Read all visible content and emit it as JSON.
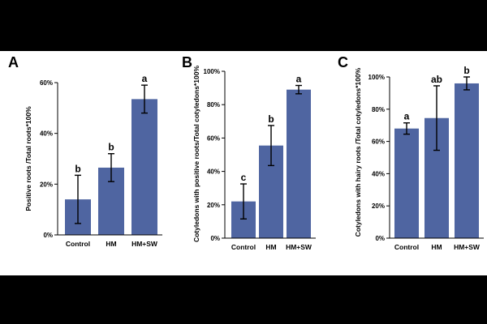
{
  "colors": {
    "bar": "#4F65A1",
    "axis": "#000000",
    "band": "#000000"
  },
  "chart_data": [
    {
      "type": "bar",
      "panel": "A",
      "ylabel": "Positive roots /Total roots*100%",
      "ylim": [
        0,
        60
      ],
      "yticks": [
        0,
        20,
        40,
        60
      ],
      "ytick_labels": [
        "0%",
        "20%",
        "40%",
        "60%"
      ],
      "categories": [
        "Control",
        "HM",
        "HM+SW"
      ],
      "values": [
        14,
        26.5,
        53.5
      ],
      "errors": [
        9.5,
        5.5,
        5.5
      ],
      "significance": [
        "b",
        "b",
        "a"
      ],
      "grid": false,
      "legend": "none"
    },
    {
      "type": "bar",
      "panel": "B",
      "ylabel": "Cotyledons with positive roots/Total cotyledons*100%",
      "ylim": [
        0,
        100
      ],
      "yticks": [
        0,
        20,
        40,
        60,
        80,
        100
      ],
      "ytick_labels": [
        "0%",
        "20%",
        "40%",
        "60%",
        "80%",
        "100%"
      ],
      "categories": [
        "Control",
        "HM",
        "HM+SW"
      ],
      "values": [
        22,
        55.5,
        89
      ],
      "errors": [
        10.5,
        12,
        2.5
      ],
      "significance": [
        "c",
        "b",
        "a"
      ],
      "grid": false,
      "legend": "none"
    },
    {
      "type": "bar",
      "panel": "C",
      "ylabel": "Cotyledons with hairy roots /Total cotyledons*100%",
      "ylim": [
        0,
        100
      ],
      "yticks": [
        0,
        20,
        40,
        60,
        80,
        100
      ],
      "ytick_labels": [
        "0%",
        "20%",
        "40%",
        "60%",
        "80%",
        "100%"
      ],
      "categories": [
        "Control",
        "HM",
        "HM+SW"
      ],
      "values": [
        68,
        74.5,
        96
      ],
      "errors": [
        3.5,
        20,
        4
      ],
      "significance": [
        "a",
        "ab",
        "b"
      ],
      "grid": false,
      "legend": "none"
    }
  ]
}
